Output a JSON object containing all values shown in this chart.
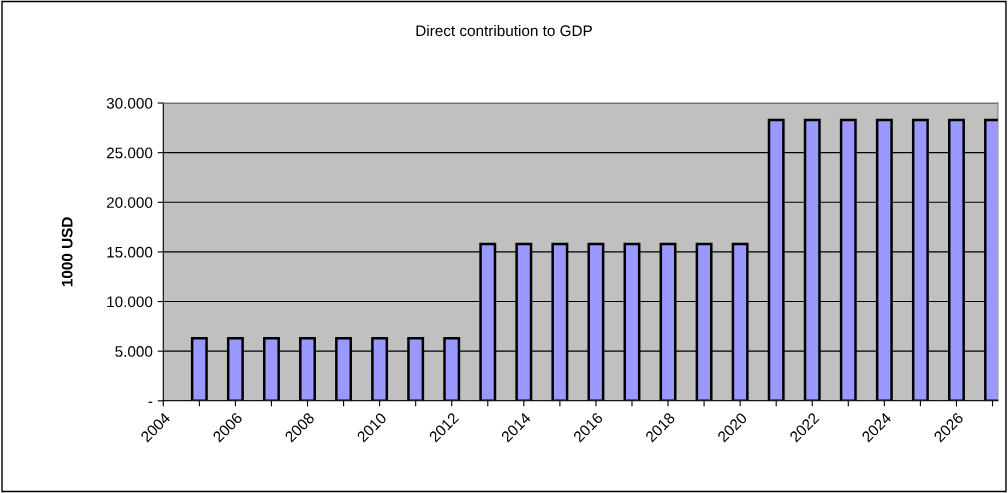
{
  "chart_data": {
    "type": "bar",
    "title": "Direct contribution to GDP",
    "ylabel": "1000 USD",
    "x": [
      2005,
      2006,
      2007,
      2008,
      2009,
      2010,
      2011,
      2012,
      2013,
      2014,
      2015,
      2016,
      2017,
      2018,
      2019,
      2020,
      2021,
      2022,
      2023,
      2024,
      2025,
      2026,
      2027
    ],
    "series": [
      {
        "color": "#9999ff",
        "values": [
          6300,
          6300,
          6300,
          6300,
          6300,
          6300,
          6300,
          6300,
          15800,
          15800,
          15800,
          15800,
          15800,
          15800,
          15800,
          15800,
          28300,
          28300,
          28300,
          28300,
          28300,
          28300,
          28300
        ]
      }
    ],
    "xlim": [
      2004,
      2027.15
    ],
    "xticks": [
      2004,
      {
        "value": 2005,
        "label": null
      },
      2006,
      {
        "value": 2007,
        "label": null
      },
      2008,
      {
        "value": 2009,
        "label": null
      },
      2010,
      {
        "value": 2011,
        "label": null
      },
      2012,
      {
        "value": 2013,
        "label": null
      },
      2014,
      {
        "value": 2015,
        "label": null
      },
      2016,
      {
        "value": 2017,
        "label": null
      },
      2018,
      {
        "value": 2019,
        "label": null
      },
      2020,
      {
        "value": 2021,
        "label": null
      },
      2022,
      {
        "value": 2023,
        "label": null
      },
      2024,
      {
        "value": 2025,
        "label": null
      },
      2026,
      {
        "value": 2027,
        "label": null
      }
    ],
    "ylim": [
      0,
      30000
    ],
    "yticks": [
      {
        "value": 0,
        "label": "-"
      },
      {
        "value": 5000,
        "label": "5.000"
      },
      {
        "value": 10000,
        "label": "10.000"
      },
      {
        "value": 15000,
        "label": "15.000"
      },
      {
        "value": 20000,
        "label": "20.000"
      },
      {
        "value": 25000,
        "label": "25.000"
      },
      {
        "value": 30000,
        "label": "30.000"
      }
    ],
    "grid": "y"
  }
}
